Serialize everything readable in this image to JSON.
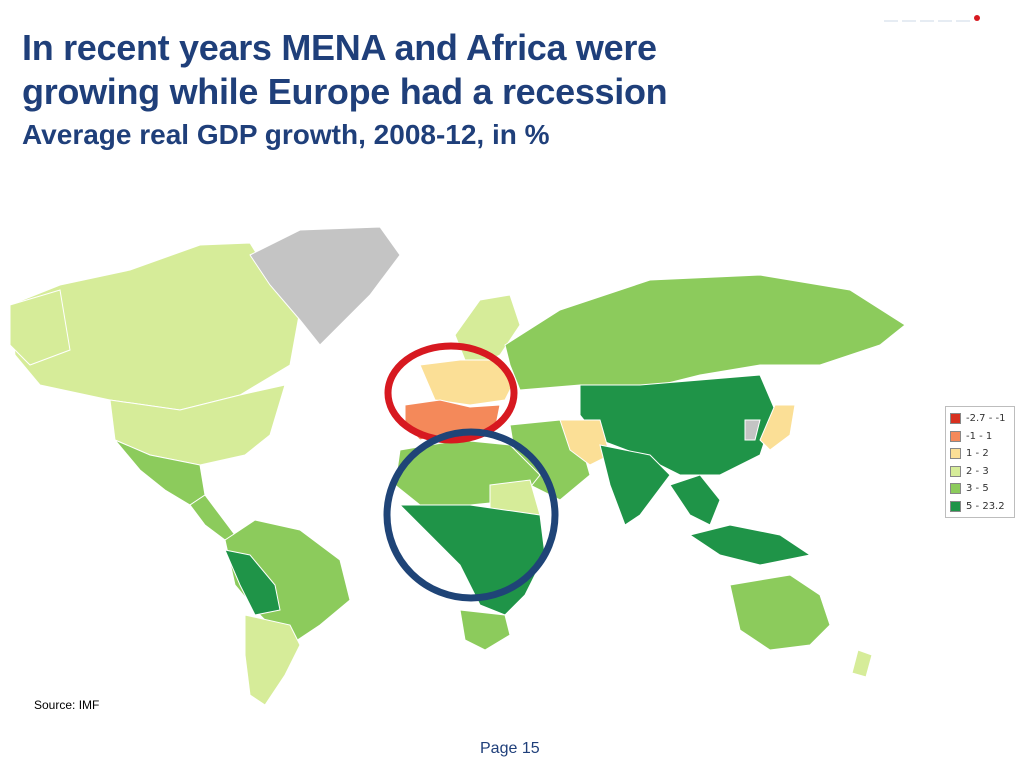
{
  "slide": {
    "title_line1": "In recent years MENA and Africa were",
    "title_line2": "growing while Europe had a recession",
    "subtitle": "Average real GDP growth, 2008-12, in %",
    "source": "Source: IMF",
    "page": "Page 15"
  },
  "legend": {
    "items": [
      {
        "label": "-2.7 - -1",
        "color": "#d7301f"
      },
      {
        "label": "-1 - 1",
        "color": "#f4895a"
      },
      {
        "label": "1 - 2",
        "color": "#fbdf96"
      },
      {
        "label": "2 - 3",
        "color": "#d6ec99"
      },
      {
        "label": "3 - 5",
        "color": "#8ccb5c"
      },
      {
        "label": "5 - 23.2",
        "color": "#1f9448"
      }
    ],
    "no_data_color": "#c4c4c4"
  },
  "annotations": {
    "europe_circle_color": "#d71920",
    "africa_circle_color": "#1f4477"
  },
  "colors": {
    "title": "#1f3f7a",
    "logo_accent": "#d71920"
  }
}
